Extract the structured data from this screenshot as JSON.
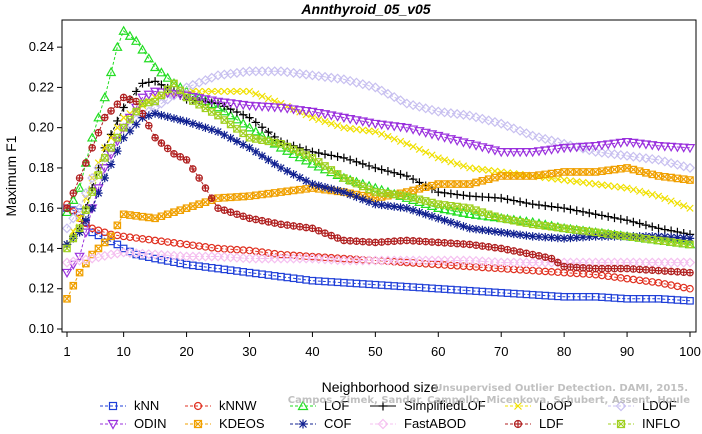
{
  "chart_data": {
    "type": "line",
    "title": "Annthyroid_05_v05",
    "xlabel": "Neighborhood size",
    "ylabel": "Maximum F1",
    "xlim": [
      1,
      100
    ],
    "ylim": [
      0.1,
      0.25
    ],
    "x_ticks": [
      1,
      10,
      20,
      30,
      40,
      50,
      60,
      70,
      80,
      90,
      100
    ],
    "y_ticks": [
      "0.10",
      "0.12",
      "0.14",
      "0.16",
      "0.18",
      "0.20",
      "0.22",
      "0.24"
    ],
    "grid": false,
    "legend_position": "bottom",
    "series": [
      {
        "name": "kNN",
        "color": "#1f3fd8",
        "marker": "square",
        "points": [
          [
            1,
            0.16
          ],
          [
            3,
            0.158
          ],
          [
            5,
            0.148
          ],
          [
            7,
            0.145
          ],
          [
            9,
            0.142
          ],
          [
            10,
            0.14
          ],
          [
            12,
            0.137
          ],
          [
            15,
            0.135
          ],
          [
            20,
            0.132
          ],
          [
            25,
            0.13
          ],
          [
            30,
            0.128
          ],
          [
            35,
            0.126
          ],
          [
            40,
            0.124
          ],
          [
            45,
            0.123
          ],
          [
            50,
            0.122
          ],
          [
            55,
            0.121
          ],
          [
            60,
            0.12
          ],
          [
            65,
            0.119
          ],
          [
            70,
            0.118
          ],
          [
            75,
            0.117
          ],
          [
            80,
            0.116
          ],
          [
            85,
            0.116
          ],
          [
            90,
            0.115
          ],
          [
            95,
            0.115
          ],
          [
            100,
            0.114
          ]
        ]
      },
      {
        "name": "kNNW",
        "color": "#e03020",
        "marker": "circle",
        "points": [
          [
            1,
            0.162
          ],
          [
            3,
            0.155
          ],
          [
            5,
            0.15
          ],
          [
            8,
            0.147
          ],
          [
            10,
            0.146
          ],
          [
            15,
            0.144
          ],
          [
            20,
            0.142
          ],
          [
            25,
            0.14
          ],
          [
            30,
            0.139
          ],
          [
            35,
            0.137
          ],
          [
            40,
            0.136
          ],
          [
            45,
            0.135
          ],
          [
            50,
            0.134
          ],
          [
            55,
            0.133
          ],
          [
            60,
            0.132
          ],
          [
            65,
            0.131
          ],
          [
            70,
            0.13
          ],
          [
            75,
            0.129
          ],
          [
            80,
            0.128
          ],
          [
            85,
            0.127
          ],
          [
            90,
            0.125
          ],
          [
            95,
            0.123
          ],
          [
            100,
            0.12
          ]
        ]
      },
      {
        "name": "LOF",
        "color": "#22dd22",
        "marker": "triangle-up",
        "points": [
          [
            1,
            0.158
          ],
          [
            3,
            0.17
          ],
          [
            5,
            0.195
          ],
          [
            7,
            0.215
          ],
          [
            9,
            0.24
          ],
          [
            10,
            0.248
          ],
          [
            12,
            0.243
          ],
          [
            15,
            0.23
          ],
          [
            18,
            0.222
          ],
          [
            20,
            0.218
          ],
          [
            25,
            0.21
          ],
          [
            30,
            0.2
          ],
          [
            35,
            0.19
          ],
          [
            40,
            0.182
          ],
          [
            45,
            0.175
          ],
          [
            50,
            0.17
          ],
          [
            55,
            0.165
          ],
          [
            60,
            0.16
          ],
          [
            65,
            0.157
          ],
          [
            70,
            0.155
          ],
          [
            75,
            0.153
          ],
          [
            80,
            0.15
          ],
          [
            85,
            0.148
          ],
          [
            90,
            0.146
          ],
          [
            95,
            0.144
          ],
          [
            100,
            0.142
          ]
        ]
      },
      {
        "name": "SimplifiedLOF",
        "color": "#000000",
        "marker": "plus",
        "points": [
          [
            1,
            0.142
          ],
          [
            3,
            0.15
          ],
          [
            5,
            0.17
          ],
          [
            7,
            0.19
          ],
          [
            10,
            0.21
          ],
          [
            13,
            0.222
          ],
          [
            15,
            0.223
          ],
          [
            18,
            0.218
          ],
          [
            20,
            0.214
          ],
          [
            25,
            0.212
          ],
          [
            30,
            0.205
          ],
          [
            35,
            0.193
          ],
          [
            40,
            0.188
          ],
          [
            45,
            0.185
          ],
          [
            50,
            0.18
          ],
          [
            55,
            0.176
          ],
          [
            60,
            0.168
          ],
          [
            65,
            0.166
          ],
          [
            70,
            0.165
          ],
          [
            75,
            0.162
          ],
          [
            80,
            0.16
          ],
          [
            85,
            0.157
          ],
          [
            90,
            0.154
          ],
          [
            95,
            0.15
          ],
          [
            100,
            0.147
          ]
        ]
      },
      {
        "name": "LoOP",
        "color": "#f0e000",
        "marker": "x",
        "points": [
          [
            1,
            0.142
          ],
          [
            3,
            0.155
          ],
          [
            5,
            0.175
          ],
          [
            7,
            0.19
          ],
          [
            10,
            0.205
          ],
          [
            15,
            0.215
          ],
          [
            20,
            0.218
          ],
          [
            25,
            0.218
          ],
          [
            30,
            0.218
          ],
          [
            35,
            0.212
          ],
          [
            40,
            0.205
          ],
          [
            45,
            0.2
          ],
          [
            50,
            0.198
          ],
          [
            55,
            0.192
          ],
          [
            60,
            0.185
          ],
          [
            65,
            0.18
          ],
          [
            70,
            0.178
          ],
          [
            75,
            0.176
          ],
          [
            80,
            0.174
          ],
          [
            85,
            0.172
          ],
          [
            90,
            0.17
          ],
          [
            95,
            0.166
          ],
          [
            100,
            0.16
          ]
        ]
      },
      {
        "name": "LDOF",
        "color": "#c8c0f0",
        "marker": "diamond",
        "points": [
          [
            1,
            0.15
          ],
          [
            3,
            0.16
          ],
          [
            5,
            0.175
          ],
          [
            8,
            0.19
          ],
          [
            10,
            0.2
          ],
          [
            15,
            0.21
          ],
          [
            20,
            0.22
          ],
          [
            25,
            0.226
          ],
          [
            30,
            0.228
          ],
          [
            35,
            0.228
          ],
          [
            40,
            0.226
          ],
          [
            45,
            0.224
          ],
          [
            50,
            0.22
          ],
          [
            55,
            0.212
          ],
          [
            60,
            0.208
          ],
          [
            65,
            0.206
          ],
          [
            70,
            0.202
          ],
          [
            75,
            0.196
          ],
          [
            80,
            0.192
          ],
          [
            85,
            0.188
          ],
          [
            90,
            0.186
          ],
          [
            95,
            0.184
          ],
          [
            100,
            0.18
          ]
        ]
      },
      {
        "name": "ODIN",
        "color": "#9a30dd",
        "marker": "triangle-down",
        "points": [
          [
            1,
            0.128
          ],
          [
            3,
            0.136
          ],
          [
            5,
            0.16
          ],
          [
            7,
            0.18
          ],
          [
            10,
            0.2
          ],
          [
            13,
            0.215
          ],
          [
            15,
            0.218
          ],
          [
            20,
            0.216
          ],
          [
            25,
            0.213
          ],
          [
            30,
            0.211
          ],
          [
            35,
            0.21
          ],
          [
            40,
            0.208
          ],
          [
            45,
            0.205
          ],
          [
            50,
            0.202
          ],
          [
            55,
            0.2
          ],
          [
            60,
            0.196
          ],
          [
            65,
            0.192
          ],
          [
            70,
            0.188
          ],
          [
            75,
            0.188
          ],
          [
            80,
            0.19
          ],
          [
            85,
            0.191
          ],
          [
            90,
            0.193
          ],
          [
            95,
            0.191
          ],
          [
            100,
            0.19
          ]
        ]
      },
      {
        "name": "KDEOS",
        "color": "#f0a000",
        "marker": "square-x",
        "points": [
          [
            1,
            0.115
          ],
          [
            3,
            0.128
          ],
          [
            5,
            0.137
          ],
          [
            8,
            0.146
          ],
          [
            10,
            0.157
          ],
          [
            15,
            0.155
          ],
          [
            20,
            0.16
          ],
          [
            25,
            0.165
          ],
          [
            30,
            0.166
          ],
          [
            35,
            0.168
          ],
          [
            40,
            0.17
          ],
          [
            45,
            0.168
          ],
          [
            50,
            0.165
          ],
          [
            55,
            0.168
          ],
          [
            60,
            0.172
          ],
          [
            65,
            0.172
          ],
          [
            70,
            0.176
          ],
          [
            75,
            0.176
          ],
          [
            80,
            0.178
          ],
          [
            85,
            0.178
          ],
          [
            90,
            0.18
          ],
          [
            95,
            0.176
          ],
          [
            100,
            0.174
          ]
        ]
      },
      {
        "name": "COF",
        "color": "#102090",
        "marker": "asterisk",
        "points": [
          [
            1,
            0.142
          ],
          [
            3,
            0.148
          ],
          [
            5,
            0.16
          ],
          [
            7,
            0.175
          ],
          [
            10,
            0.195
          ],
          [
            13,
            0.205
          ],
          [
            15,
            0.207
          ],
          [
            20,
            0.203
          ],
          [
            25,
            0.198
          ],
          [
            30,
            0.19
          ],
          [
            35,
            0.18
          ],
          [
            40,
            0.172
          ],
          [
            45,
            0.168
          ],
          [
            50,
            0.162
          ],
          [
            55,
            0.16
          ],
          [
            60,
            0.155
          ],
          [
            65,
            0.15
          ],
          [
            70,
            0.148
          ],
          [
            75,
            0.146
          ],
          [
            80,
            0.145
          ],
          [
            85,
            0.146
          ],
          [
            90,
            0.146
          ],
          [
            95,
            0.146
          ],
          [
            100,
            0.145
          ]
        ]
      },
      {
        "name": "FastABOD",
        "color": "#f5c0f0",
        "marker": "diamond",
        "points": [
          [
            1,
            0.133
          ],
          [
            3,
            0.134
          ],
          [
            5,
            0.135
          ],
          [
            8,
            0.137
          ],
          [
            10,
            0.138
          ],
          [
            15,
            0.137
          ],
          [
            20,
            0.136
          ],
          [
            25,
            0.136
          ],
          [
            30,
            0.135
          ],
          [
            35,
            0.135
          ],
          [
            40,
            0.135
          ],
          [
            45,
            0.134
          ],
          [
            50,
            0.134
          ],
          [
            55,
            0.134
          ],
          [
            60,
            0.134
          ],
          [
            65,
            0.134
          ],
          [
            70,
            0.133
          ],
          [
            75,
            0.133
          ],
          [
            80,
            0.133
          ],
          [
            85,
            0.133
          ],
          [
            90,
            0.133
          ],
          [
            95,
            0.133
          ],
          [
            100,
            0.133
          ]
        ]
      },
      {
        "name": "LDF",
        "color": "#b02020",
        "marker": "circle-plus",
        "points": [
          [
            1,
            0.16
          ],
          [
            3,
            0.175
          ],
          [
            5,
            0.19
          ],
          [
            7,
            0.205
          ],
          [
            10,
            0.215
          ],
          [
            12,
            0.213
          ],
          [
            15,
            0.195
          ],
          [
            18,
            0.187
          ],
          [
            20,
            0.184
          ],
          [
            22,
            0.175
          ],
          [
            25,
            0.16
          ],
          [
            30,
            0.155
          ],
          [
            35,
            0.152
          ],
          [
            40,
            0.15
          ],
          [
            45,
            0.144
          ],
          [
            50,
            0.143
          ],
          [
            55,
            0.144
          ],
          [
            60,
            0.143
          ],
          [
            65,
            0.142
          ],
          [
            70,
            0.14
          ],
          [
            75,
            0.137
          ],
          [
            78,
            0.135
          ],
          [
            80,
            0.131
          ],
          [
            85,
            0.13
          ],
          [
            90,
            0.13
          ],
          [
            95,
            0.129
          ],
          [
            100,
            0.128
          ]
        ]
      },
      {
        "name": "INFLO",
        "color": "#a0d020",
        "marker": "square-x",
        "points": [
          [
            1,
            0.14
          ],
          [
            3,
            0.15
          ],
          [
            5,
            0.168
          ],
          [
            7,
            0.185
          ],
          [
            10,
            0.2
          ],
          [
            13,
            0.212
          ],
          [
            15,
            0.213
          ],
          [
            18,
            0.222
          ],
          [
            20,
            0.215
          ],
          [
            25,
            0.206
          ],
          [
            30,
            0.195
          ],
          [
            35,
            0.192
          ],
          [
            40,
            0.185
          ],
          [
            45,
            0.175
          ],
          [
            50,
            0.168
          ],
          [
            55,
            0.166
          ],
          [
            60,
            0.162
          ],
          [
            65,
            0.16
          ],
          [
            70,
            0.155
          ],
          [
            75,
            0.152
          ],
          [
            80,
            0.15
          ],
          [
            85,
            0.148
          ],
          [
            90,
            0.146
          ],
          [
            95,
            0.144
          ],
          [
            100,
            0.142
          ]
        ]
      }
    ]
  },
  "watermark": {
    "line1": "Unsupervised Outlier Detection. DAMI, 2015.",
    "line2": "Campos, Zimek, Sander, Campello, Micenkova, Schubert, Assent, Houle"
  }
}
